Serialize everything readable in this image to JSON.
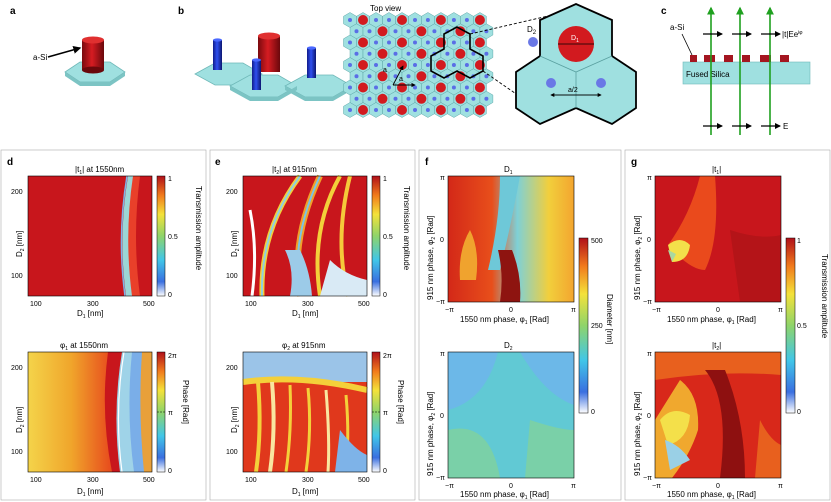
{
  "panel_labels": {
    "a": "a",
    "b": "b",
    "c": "c",
    "d": "d",
    "e": "e",
    "f": "f",
    "g": "g"
  },
  "a": {
    "material_label": "a-Si"
  },
  "b": {
    "top_view_title": "Top view",
    "D1": "D",
    "D1_sub": "1",
    "D2": "D",
    "D2_sub": "2",
    "lattice_a": "a",
    "lattice_a2": "a",
    "half_a": "a/2"
  },
  "c": {
    "material_label": "a-Si",
    "substrate_label": "Fused Silica",
    "out_field": "|t|Ee",
    "out_field_sup": "iφ",
    "in_field": "E"
  },
  "d": {
    "top_title": "|t",
    "top_title_sub": "1",
    "top_title_rest": "| at 1550nm",
    "bottom_title": "φ",
    "bottom_title_sub": "1",
    "bottom_title_rest": " at 1550nm",
    "xlabel": "D",
    "xlabel_sub": "1",
    "xlabel_rest": " [nm]",
    "ylabel": "D",
    "ylabel_sub": "2",
    "ylabel_rest": " [nm]",
    "x_ticks": [
      "100",
      "300",
      "500"
    ],
    "y_ticks": [
      "200",
      "100"
    ],
    "cbar_top_label": "Transmission amplitude",
    "cbar_top_ticks": [
      "1",
      "0.5",
      "0"
    ],
    "cbar_bottom_label": "Phase [Rad]",
    "cbar_bottom_ticks": [
      "2π",
      "π",
      "0"
    ]
  },
  "e": {
    "top_title": "|t",
    "top_title_sub": "2",
    "top_title_rest": "| at  915nm",
    "bottom_title": "φ",
    "bottom_title_sub": "2",
    "bottom_title_rest": " at 915nm",
    "xlabel": "D",
    "xlabel_sub": "1",
    "xlabel_rest": " [nm]",
    "ylabel": "D",
    "ylabel_sub": "2",
    "ylabel_rest": " [nm]",
    "x_ticks": [
      "100",
      "300",
      "500"
    ],
    "y_ticks": [
      "200",
      "100"
    ],
    "cbar_top_label": "Transmission amplitude",
    "cbar_top_ticks": [
      "1",
      "0.5",
      "0"
    ],
    "cbar_bottom_label": "Phase [Rad]",
    "cbar_bottom_ticks": [
      "2π",
      "π",
      "0"
    ]
  },
  "f": {
    "top_title": "D",
    "top_title_sub": "1",
    "bottom_title": "D",
    "bottom_title_sub": "2",
    "xlabel": "1550 nm phase, φ",
    "xlabel_sub": "1",
    "xlabel_rest": " [Rad]",
    "ylabel": "915 nm phase, φ",
    "ylabel_sub": "2",
    "ylabel_rest": " [Rad]",
    "x_ticks": [
      "−π",
      "0",
      "π"
    ],
    "y_ticks": [
      "π",
      "0",
      "−π"
    ],
    "cbar_label": "Diameter [nm]",
    "cbar_ticks": [
      "500",
      "250",
      "0"
    ]
  },
  "g": {
    "top_title": "|t",
    "top_title_sub": "1",
    "top_title_rest": "|",
    "bottom_title": "|t",
    "bottom_title_sub": "2",
    "bottom_title_rest": "|",
    "xlabel": "1550 nm phase, φ",
    "xlabel_sub": "1",
    "xlabel_rest": " [Rad]",
    "ylabel": "915 nm phase, φ",
    "ylabel_sub": "2",
    "ylabel_rest": " [Rad]",
    "x_ticks": [
      "−π",
      "0",
      "π"
    ],
    "y_ticks": [
      "π",
      "0",
      "−π"
    ],
    "cbar_label": "Transmission amplitude",
    "cbar_ticks": [
      "1",
      "0.5",
      "0"
    ]
  },
  "colors": {
    "pillar": "#c4161c",
    "pillar_blue": "#2540d8",
    "substrate": "#9fe0e0",
    "arrow_green": "#1fa01f"
  }
}
